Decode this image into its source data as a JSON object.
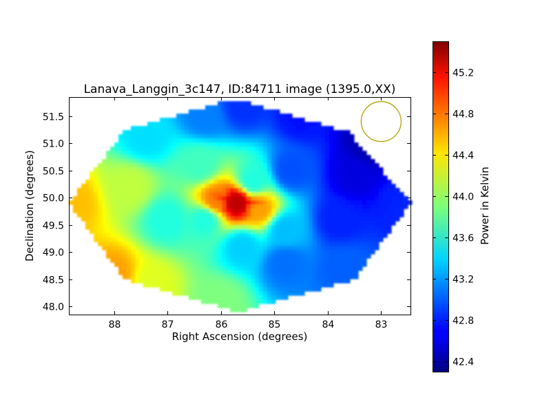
{
  "chart_data": {
    "type": "heatmap",
    "title": "Lanava_Langgin_3c147, ID:84711 image (1395.0,XX)",
    "xlabel": "Right Ascension (degrees)",
    "ylabel": "Declination (degrees)",
    "xlim": [
      88.85,
      82.45
    ],
    "ylim": [
      47.85,
      51.85
    ],
    "x_ticks": [
      88,
      87,
      86,
      85,
      84,
      83
    ],
    "x_tick_labels": [
      "88",
      "87",
      "86",
      "85",
      "84",
      "83"
    ],
    "y_ticks": [
      48.0,
      48.5,
      49.0,
      49.5,
      50.0,
      50.5,
      51.0,
      51.5
    ],
    "y_tick_labels": [
      "48.0",
      "48.5",
      "49.0",
      "49.5",
      "50.0",
      "50.5",
      "51.0",
      "51.5"
    ],
    "colorbar": {
      "label": "Power in Kelvin",
      "range": [
        42.3,
        45.5
      ],
      "ticks": [
        42.4,
        42.8,
        43.2,
        43.6,
        44.0,
        44.4,
        44.8,
        45.2
      ],
      "tick_labels": [
        "42.4",
        "42.8",
        "43.2",
        "43.6",
        "44.0",
        "44.4",
        "44.8",
        "45.2"
      ],
      "colormap": "jet"
    },
    "source_peak": {
      "ra": 85.7,
      "dec": 49.9,
      "value": 45.3
    },
    "beam_circle": {
      "ra": 83.0,
      "dec": 51.4,
      "color": "#b0a000"
    },
    "coverage_region": "octagon",
    "value_samples": [
      {
        "ra": 85.7,
        "dec": 49.9,
        "value": 45.3
      },
      {
        "ra": 86.1,
        "dec": 49.95,
        "value": 44.7
      },
      {
        "ra": 85.3,
        "dec": 49.8,
        "value": 44.6
      },
      {
        "ra": 88.8,
        "dec": 49.9,
        "value": 44.5
      },
      {
        "ra": 88.0,
        "dec": 48.55,
        "value": 44.6
      },
      {
        "ra": 87.3,
        "dec": 48.4,
        "value": 44.2
      },
      {
        "ra": 86.0,
        "dec": 48.1,
        "value": 43.9
      },
      {
        "ra": 87.7,
        "dec": 50.2,
        "value": 44.1
      },
      {
        "ra": 87.4,
        "dec": 51.1,
        "value": 43.4
      },
      {
        "ra": 86.3,
        "dec": 51.5,
        "value": 43.1
      },
      {
        "ra": 85.6,
        "dec": 51.7,
        "value": 42.85
      },
      {
        "ra": 84.5,
        "dec": 51.5,
        "value": 42.75
      },
      {
        "ra": 83.2,
        "dec": 51.0,
        "value": 42.45
      },
      {
        "ra": 83.5,
        "dec": 50.4,
        "value": 42.6
      },
      {
        "ra": 82.6,
        "dec": 49.9,
        "value": 42.8
      },
      {
        "ra": 83.8,
        "dec": 49.6,
        "value": 42.8
      },
      {
        "ra": 84.7,
        "dec": 50.5,
        "value": 42.95
      },
      {
        "ra": 83.7,
        "dec": 48.7,
        "value": 43.0
      },
      {
        "ra": 84.8,
        "dec": 48.8,
        "value": 43.05
      },
      {
        "ra": 85.6,
        "dec": 49.1,
        "value": 43.35
      },
      {
        "ra": 86.4,
        "dec": 50.6,
        "value": 43.7
      },
      {
        "ra": 86.3,
        "dec": 49.6,
        "value": 43.6
      },
      {
        "ra": 87.0,
        "dec": 49.6,
        "value": 43.6
      },
      {
        "ra": 84.8,
        "dec": 49.4,
        "value": 43.3
      },
      {
        "ra": 85.4,
        "dec": 50.3,
        "value": 43.6
      }
    ]
  }
}
